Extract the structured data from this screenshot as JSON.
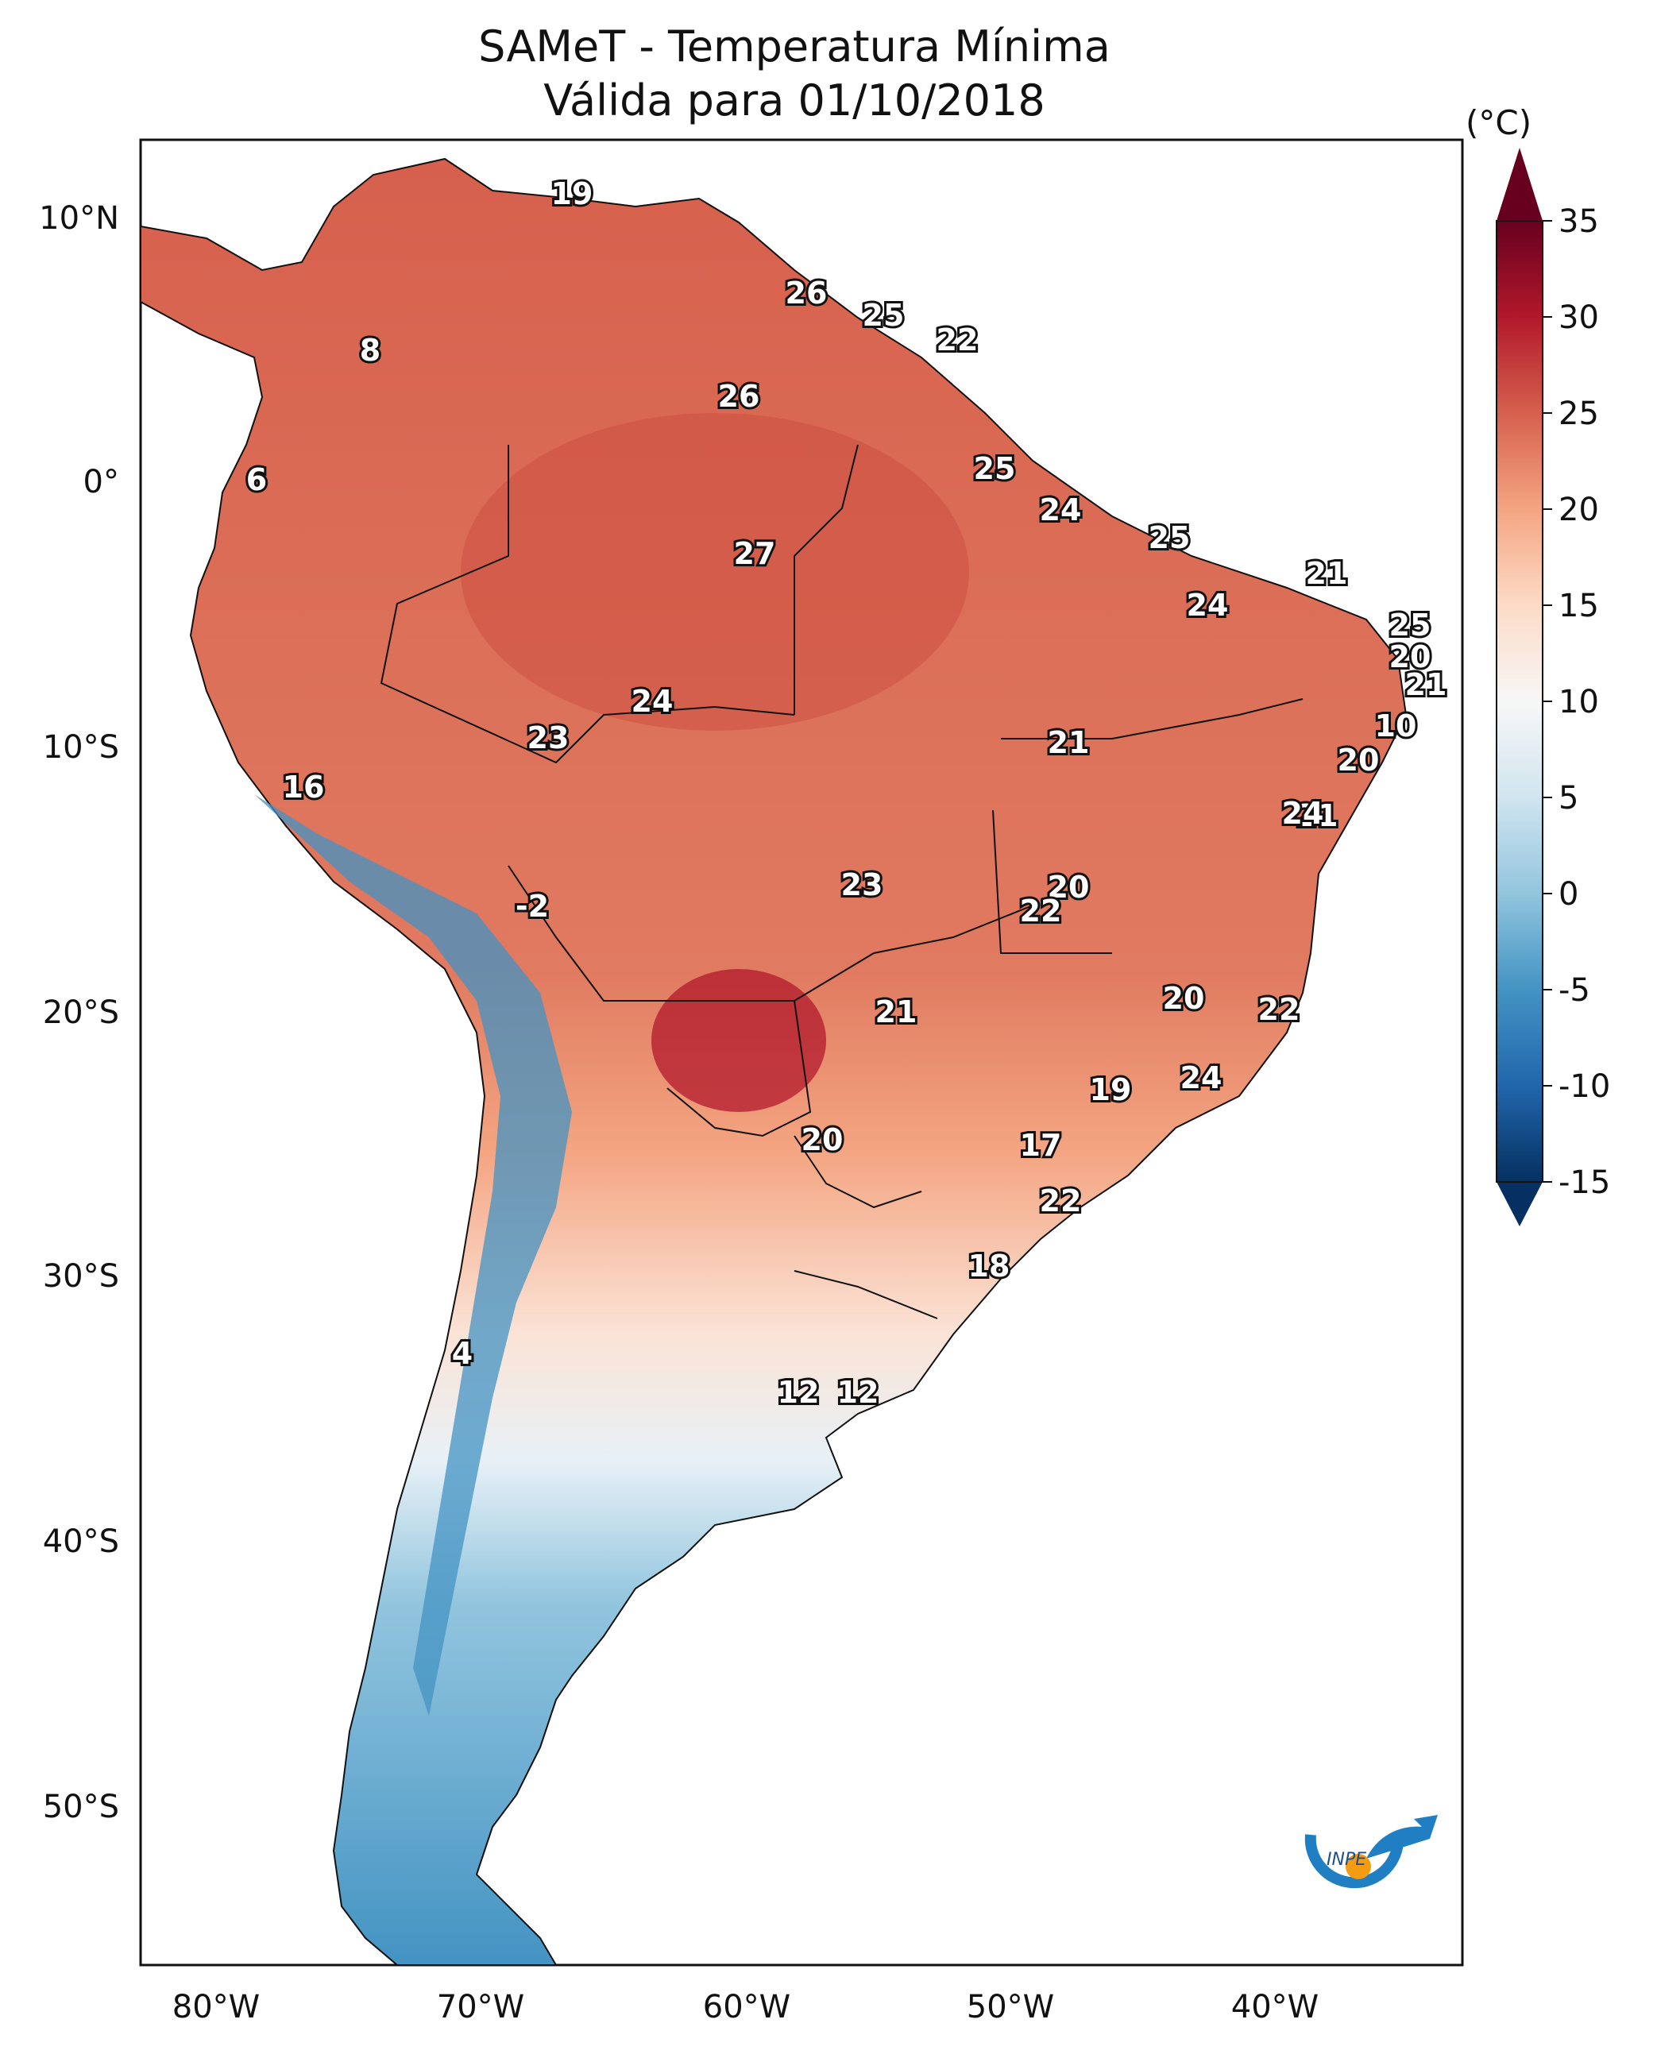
{
  "header": {
    "title_line1": "SAMeT - Temperatura Mínima",
    "title_line2": "Válida para 01/10/2018"
  },
  "axes": {
    "lon_ticks": [
      "80°W",
      "70°W",
      "60°W",
      "50°W",
      "40°W"
    ],
    "lat_ticks": [
      "10°N",
      "0°",
      "10°S",
      "20°S",
      "30°S",
      "40°S",
      "50°S"
    ]
  },
  "colorbar": {
    "units": "(°C)",
    "ticks": [
      "35",
      "30",
      "25",
      "20",
      "15",
      "10",
      "5",
      "0",
      "-5",
      "-10",
      "-15"
    ],
    "range": [
      -15,
      35
    ],
    "colors": [
      "#053061",
      "#2166ac",
      "#4393c3",
      "#92c5de",
      "#d1e5f0",
      "#f7f7f7",
      "#fddbc7",
      "#f4a582",
      "#d6604d",
      "#b2182b",
      "#67001f"
    ]
  },
  "map_labels": [
    "19",
    "26",
    "25",
    "22",
    "8",
    "26",
    "6",
    "25",
    "24",
    "27",
    "25",
    "21",
    "24",
    "25",
    "20",
    "21",
    "24",
    "23",
    "10",
    "21",
    "20",
    "16",
    "21",
    "24",
    "-2",
    "23",
    "20",
    "22",
    "20",
    "22",
    "21",
    "24",
    "19",
    "20",
    "17",
    "22",
    "18",
    "4",
    "12",
    "12"
  ],
  "logo": {
    "text": "INPE",
    "name": "inpe-logo"
  },
  "colors": {
    "ocean": "#ffffff",
    "border": "#111111"
  }
}
